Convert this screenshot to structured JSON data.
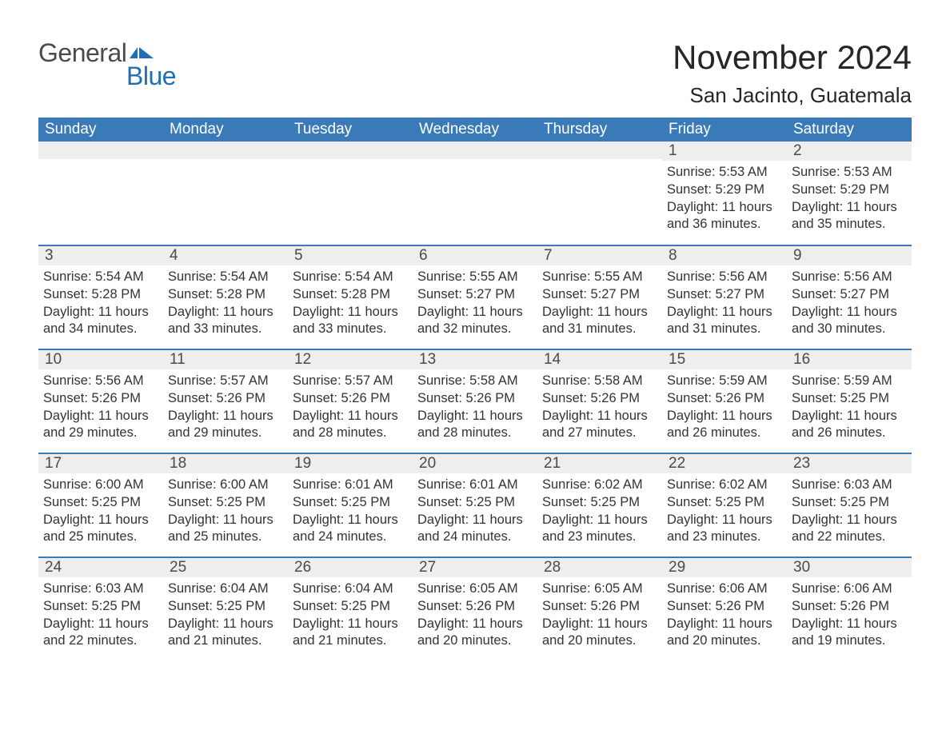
{
  "brand": {
    "word1": "General",
    "word2": "Blue",
    "flag_color": "#1f6fb2",
    "word1_color": "#4a4a4a",
    "word2_color": "#1f6fb2"
  },
  "title": {
    "month": "November 2024",
    "location": "San Jacinto, Guatemala"
  },
  "colors": {
    "header_bg": "#3a7ab8",
    "header_text": "#ffffff",
    "daynum_bg": "#eeeeee",
    "daynum_text": "#4a4a4a",
    "body_text": "#333333",
    "row_border": "#3a7ab8",
    "page_bg": "#ffffff"
  },
  "weekdays": [
    "Sunday",
    "Monday",
    "Tuesday",
    "Wednesday",
    "Thursday",
    "Friday",
    "Saturday"
  ],
  "weeks": [
    [
      null,
      null,
      null,
      null,
      null,
      {
        "n": "1",
        "sr": "Sunrise: 5:53 AM",
        "ss": "Sunset: 5:29 PM",
        "d1": "Daylight: 11 hours",
        "d2": "and 36 minutes."
      },
      {
        "n": "2",
        "sr": "Sunrise: 5:53 AM",
        "ss": "Sunset: 5:29 PM",
        "d1": "Daylight: 11 hours",
        "d2": "and 35 minutes."
      }
    ],
    [
      {
        "n": "3",
        "sr": "Sunrise: 5:54 AM",
        "ss": "Sunset: 5:28 PM",
        "d1": "Daylight: 11 hours",
        "d2": "and 34 minutes."
      },
      {
        "n": "4",
        "sr": "Sunrise: 5:54 AM",
        "ss": "Sunset: 5:28 PM",
        "d1": "Daylight: 11 hours",
        "d2": "and 33 minutes."
      },
      {
        "n": "5",
        "sr": "Sunrise: 5:54 AM",
        "ss": "Sunset: 5:28 PM",
        "d1": "Daylight: 11 hours",
        "d2": "and 33 minutes."
      },
      {
        "n": "6",
        "sr": "Sunrise: 5:55 AM",
        "ss": "Sunset: 5:27 PM",
        "d1": "Daylight: 11 hours",
        "d2": "and 32 minutes."
      },
      {
        "n": "7",
        "sr": "Sunrise: 5:55 AM",
        "ss": "Sunset: 5:27 PM",
        "d1": "Daylight: 11 hours",
        "d2": "and 31 minutes."
      },
      {
        "n": "8",
        "sr": "Sunrise: 5:56 AM",
        "ss": "Sunset: 5:27 PM",
        "d1": "Daylight: 11 hours",
        "d2": "and 31 minutes."
      },
      {
        "n": "9",
        "sr": "Sunrise: 5:56 AM",
        "ss": "Sunset: 5:27 PM",
        "d1": "Daylight: 11 hours",
        "d2": "and 30 minutes."
      }
    ],
    [
      {
        "n": "10",
        "sr": "Sunrise: 5:56 AM",
        "ss": "Sunset: 5:26 PM",
        "d1": "Daylight: 11 hours",
        "d2": "and 29 minutes."
      },
      {
        "n": "11",
        "sr": "Sunrise: 5:57 AM",
        "ss": "Sunset: 5:26 PM",
        "d1": "Daylight: 11 hours",
        "d2": "and 29 minutes."
      },
      {
        "n": "12",
        "sr": "Sunrise: 5:57 AM",
        "ss": "Sunset: 5:26 PM",
        "d1": "Daylight: 11 hours",
        "d2": "and 28 minutes."
      },
      {
        "n": "13",
        "sr": "Sunrise: 5:58 AM",
        "ss": "Sunset: 5:26 PM",
        "d1": "Daylight: 11 hours",
        "d2": "and 28 minutes."
      },
      {
        "n": "14",
        "sr": "Sunrise: 5:58 AM",
        "ss": "Sunset: 5:26 PM",
        "d1": "Daylight: 11 hours",
        "d2": "and 27 minutes."
      },
      {
        "n": "15",
        "sr": "Sunrise: 5:59 AM",
        "ss": "Sunset: 5:26 PM",
        "d1": "Daylight: 11 hours",
        "d2": "and 26 minutes."
      },
      {
        "n": "16",
        "sr": "Sunrise: 5:59 AM",
        "ss": "Sunset: 5:25 PM",
        "d1": "Daylight: 11 hours",
        "d2": "and 26 minutes."
      }
    ],
    [
      {
        "n": "17",
        "sr": "Sunrise: 6:00 AM",
        "ss": "Sunset: 5:25 PM",
        "d1": "Daylight: 11 hours",
        "d2": "and 25 minutes."
      },
      {
        "n": "18",
        "sr": "Sunrise: 6:00 AM",
        "ss": "Sunset: 5:25 PM",
        "d1": "Daylight: 11 hours",
        "d2": "and 25 minutes."
      },
      {
        "n": "19",
        "sr": "Sunrise: 6:01 AM",
        "ss": "Sunset: 5:25 PM",
        "d1": "Daylight: 11 hours",
        "d2": "and 24 minutes."
      },
      {
        "n": "20",
        "sr": "Sunrise: 6:01 AM",
        "ss": "Sunset: 5:25 PM",
        "d1": "Daylight: 11 hours",
        "d2": "and 24 minutes."
      },
      {
        "n": "21",
        "sr": "Sunrise: 6:02 AM",
        "ss": "Sunset: 5:25 PM",
        "d1": "Daylight: 11 hours",
        "d2": "and 23 minutes."
      },
      {
        "n": "22",
        "sr": "Sunrise: 6:02 AM",
        "ss": "Sunset: 5:25 PM",
        "d1": "Daylight: 11 hours",
        "d2": "and 23 minutes."
      },
      {
        "n": "23",
        "sr": "Sunrise: 6:03 AM",
        "ss": "Sunset: 5:25 PM",
        "d1": "Daylight: 11 hours",
        "d2": "and 22 minutes."
      }
    ],
    [
      {
        "n": "24",
        "sr": "Sunrise: 6:03 AM",
        "ss": "Sunset: 5:25 PM",
        "d1": "Daylight: 11 hours",
        "d2": "and 22 minutes."
      },
      {
        "n": "25",
        "sr": "Sunrise: 6:04 AM",
        "ss": "Sunset: 5:25 PM",
        "d1": "Daylight: 11 hours",
        "d2": "and 21 minutes."
      },
      {
        "n": "26",
        "sr": "Sunrise: 6:04 AM",
        "ss": "Sunset: 5:25 PM",
        "d1": "Daylight: 11 hours",
        "d2": "and 21 minutes."
      },
      {
        "n": "27",
        "sr": "Sunrise: 6:05 AM",
        "ss": "Sunset: 5:26 PM",
        "d1": "Daylight: 11 hours",
        "d2": "and 20 minutes."
      },
      {
        "n": "28",
        "sr": "Sunrise: 6:05 AM",
        "ss": "Sunset: 5:26 PM",
        "d1": "Daylight: 11 hours",
        "d2": "and 20 minutes."
      },
      {
        "n": "29",
        "sr": "Sunrise: 6:06 AM",
        "ss": "Sunset: 5:26 PM",
        "d1": "Daylight: 11 hours",
        "d2": "and 20 minutes."
      },
      {
        "n": "30",
        "sr": "Sunrise: 6:06 AM",
        "ss": "Sunset: 5:26 PM",
        "d1": "Daylight: 11 hours",
        "d2": "and 19 minutes."
      }
    ]
  ]
}
